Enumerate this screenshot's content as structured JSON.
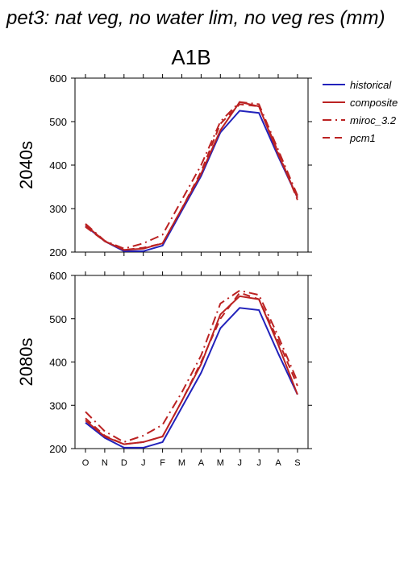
{
  "title": "pet3: nat veg, no water lim, no veg res (mm)",
  "scenario": "A1B",
  "months": [
    "O",
    "N",
    "D",
    "J",
    "F",
    "M",
    "A",
    "M",
    "J",
    "J",
    "A",
    "S"
  ],
  "legend": [
    {
      "label": "historical",
      "color": "#2222bb",
      "dash": "solid"
    },
    {
      "label": "composite",
      "color": "#bb2222",
      "dash": "solid"
    },
    {
      "label": "miroc_3.2",
      "color": "#bb2222",
      "dash": "dashdot"
    },
    {
      "label": "pcm1",
      "color": "#bb2222",
      "dash": "dash"
    }
  ],
  "chart_data": [
    {
      "type": "line",
      "panel_label": "2040s",
      "categories": [
        "O",
        "N",
        "D",
        "J",
        "F",
        "M",
        "A",
        "M",
        "J",
        "J",
        "A",
        "S"
      ],
      "ylim": [
        200,
        600
      ],
      "yticks": [
        200,
        300,
        400,
        500,
        600
      ],
      "series": [
        {
          "name": "historical",
          "values": [
            260,
            225,
            202,
            202,
            215,
            295,
            375,
            475,
            525,
            520,
            420,
            325
          ]
        },
        {
          "name": "composite",
          "values": [
            262,
            225,
            205,
            208,
            220,
            300,
            380,
            480,
            545,
            535,
            425,
            325
          ]
        },
        {
          "name": "miroc_3.2",
          "values": [
            265,
            226,
            208,
            220,
            240,
            320,
            400,
            500,
            545,
            540,
            435,
            330
          ]
        },
        {
          "name": "pcm1",
          "values": [
            258,
            225,
            205,
            210,
            220,
            300,
            385,
            495,
            540,
            535,
            430,
            320
          ]
        }
      ]
    },
    {
      "type": "line",
      "panel_label": "2080s",
      "categories": [
        "O",
        "N",
        "D",
        "J",
        "F",
        "M",
        "A",
        "M",
        "J",
        "J",
        "A",
        "S"
      ],
      "ylim": [
        200,
        600
      ],
      "yticks": [
        200,
        300,
        400,
        500,
        600
      ],
      "series": [
        {
          "name": "historical",
          "values": [
            260,
            225,
            202,
            202,
            215,
            295,
            375,
            478,
            525,
            520,
            420,
            325
          ]
        },
        {
          "name": "composite",
          "values": [
            265,
            228,
            210,
            215,
            228,
            310,
            395,
            510,
            552,
            545,
            440,
            325
          ]
        },
        {
          "name": "miroc_3.2",
          "values": [
            285,
            240,
            215,
            230,
            255,
            330,
            415,
            535,
            565,
            555,
            460,
            355
          ]
        },
        {
          "name": "pcm1",
          "values": [
            270,
            230,
            210,
            215,
            228,
            310,
            400,
            500,
            560,
            545,
            450,
            345
          ]
        }
      ]
    }
  ]
}
